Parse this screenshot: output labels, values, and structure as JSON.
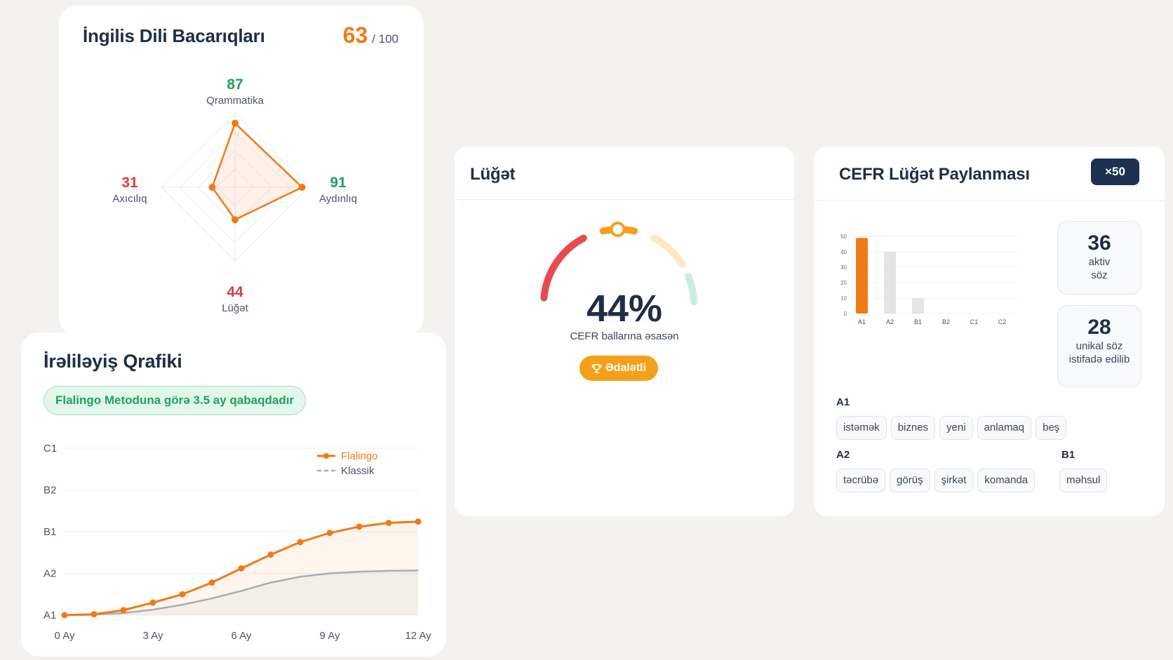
{
  "skills": {
    "title": "İngilis Dili Bacarıqları",
    "score": "63",
    "score_max": "/ 100",
    "axes": [
      {
        "name": "Qrammatika",
        "value": 87,
        "color": "#1ea35a"
      },
      {
        "name": "Aydınlıq",
        "value": 91,
        "color": "#1ea35a"
      },
      {
        "name": "Lüğət",
        "value": 44,
        "color": "#e13b3b"
      },
      {
        "name": "Axıcılıq",
        "value": 31,
        "color": "#e13b3b"
      }
    ]
  },
  "progress": {
    "title": "İrəliləyiş Qrafiki",
    "badge": "Flalingo Metoduna görə 3.5 ay qabaqdadır",
    "chart_data": {
      "type": "line",
      "x": [
        0,
        1,
        2,
        3,
        4,
        5,
        6,
        7,
        8,
        9,
        10,
        11,
        12
      ],
      "xticks": [
        0,
        3,
        6,
        9,
        12
      ],
      "xtick_labels": [
        "0 Ay",
        "3 Ay",
        "6 Ay",
        "9 Ay",
        "12 Ay"
      ],
      "ytick_labels": [
        "A1",
        "A2",
        "B1",
        "B2",
        "C1"
      ],
      "ylim": [
        0,
        4
      ],
      "legend_position": "top-right",
      "series": [
        {
          "name": "Flalingo",
          "color": "#f07a1a",
          "style": "solid-markers",
          "values": [
            0,
            0.02,
            0.12,
            0.3,
            0.5,
            0.78,
            1.12,
            1.45,
            1.75,
            1.97,
            2.12,
            2.21,
            2.24
          ]
        },
        {
          "name": "Klassik",
          "color": "#a9adb5",
          "style": "line",
          "values": [
            0,
            0.01,
            0.05,
            0.13,
            0.25,
            0.4,
            0.58,
            0.78,
            0.92,
            1.0,
            1.04,
            1.06,
            1.07
          ]
        }
      ]
    }
  },
  "vocab": {
    "title": "Lüğət",
    "value": "44%",
    "fraction": 0.44,
    "caption": "CEFR ballarına əsasən",
    "rating": "Ədalətli"
  },
  "cefr": {
    "title": "CEFR Lüğət Paylanması",
    "multiplier": "×50",
    "chart_data": {
      "type": "bar",
      "categories": [
        "A1",
        "A2",
        "B1",
        "B2",
        "C1",
        "C2"
      ],
      "values": [
        49,
        40,
        10,
        0,
        0,
        0
      ],
      "ylim": [
        0,
        50
      ],
      "yticks": [
        0,
        10,
        20,
        30,
        40,
        50
      ],
      "highlight_color": "#f07a1a",
      "bar_color": "#e3e4e7"
    },
    "stats": [
      {
        "num": "36",
        "label": "aktiv söz"
      },
      {
        "num": "28",
        "label": "unikal söz istifadə edilib"
      }
    ],
    "groups": [
      {
        "label": "A1",
        "words": [
          "istəmək",
          "biznes",
          "yeni",
          "anlamaq",
          "beş"
        ]
      },
      {
        "label": "A2",
        "words": [
          "təcrübə",
          "görüş",
          "şirkət",
          "komanda"
        ]
      },
      {
        "label": "B1",
        "words": [
          "məhsul"
        ]
      }
    ]
  }
}
